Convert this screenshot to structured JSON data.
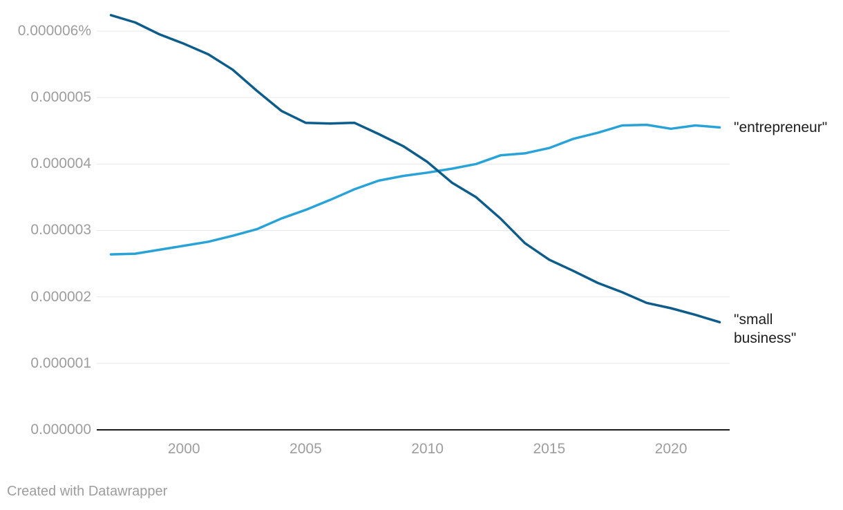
{
  "chart_data": {
    "type": "line",
    "title": "",
    "xlabel": "",
    "ylabel": "",
    "value_unit": "% of corpus (values listed in millionths of a percent, e.g. 6.24 = 0.00000624%)",
    "x": [
      1997,
      1998,
      1999,
      2000,
      2001,
      2002,
      2003,
      2004,
      2005,
      2006,
      2007,
      2008,
      2009,
      2010,
      2011,
      2012,
      2013,
      2014,
      2015,
      2016,
      2017,
      2018,
      2019,
      2020,
      2021,
      2022
    ],
    "series": [
      {
        "name": "\"entrepreneur\"",
        "color": "#29a3d7",
        "values": [
          2.64,
          2.65,
          2.71,
          2.77,
          2.83,
          2.92,
          3.02,
          3.18,
          3.31,
          3.46,
          3.62,
          3.75,
          3.82,
          3.87,
          3.93,
          4.0,
          4.13,
          4.16,
          4.24,
          4.38,
          4.47,
          4.58,
          4.59,
          4.53,
          4.58,
          4.55
        ]
      },
      {
        "name": "\"small business\"",
        "color": "#0e5c8a",
        "values": [
          6.24,
          6.13,
          5.95,
          5.81,
          5.65,
          5.42,
          5.1,
          4.8,
          4.62,
          4.61,
          4.62,
          4.45,
          4.27,
          4.03,
          3.72,
          3.5,
          3.18,
          2.81,
          2.56,
          2.39,
          2.21,
          2.07,
          1.91,
          1.83,
          1.73,
          1.62
        ]
      }
    ],
    "y_ticks": [
      {
        "v": 0,
        "label": "0.000000"
      },
      {
        "v": 1,
        "label": "0.000001"
      },
      {
        "v": 2,
        "label": "0.000002"
      },
      {
        "v": 3,
        "label": "0.000003"
      },
      {
        "v": 4,
        "label": "0.000004"
      },
      {
        "v": 5,
        "label": "0.000005"
      },
      {
        "v": 6,
        "label": "0.000006%"
      }
    ],
    "x_ticks": [
      2000,
      2005,
      2010,
      2015,
      2020
    ],
    "xlim": [
      1997,
      2022
    ],
    "ylim_e6": [
      0,
      6.5
    ],
    "grid": "horizontal",
    "legend_position": "direct-labels-right",
    "grid_color": "#e8e8e8",
    "baseline_color": "#1a1a1a",
    "tick_label_color": "#9d9d9d",
    "series_label_color": "#1d1d1d"
  },
  "footer": {
    "credit": "Created with Datawrapper"
  }
}
